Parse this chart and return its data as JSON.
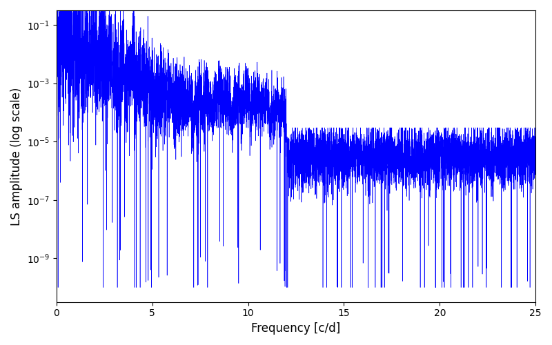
{
  "line_color": "#0000ff",
  "xlabel": "Frequency [c/d]",
  "ylabel": "LS amplitude (log scale)",
  "xlim": [
    0,
    25
  ],
  "ylim_log": [
    -10.5,
    -0.5
  ],
  "freq_max": 25.0,
  "n_points": 8000,
  "background_color": "#ffffff",
  "figsize": [
    8.0,
    5.0
  ],
  "dpi": 100,
  "linewidth": 0.4,
  "yscale": "log",
  "seed": 12345
}
